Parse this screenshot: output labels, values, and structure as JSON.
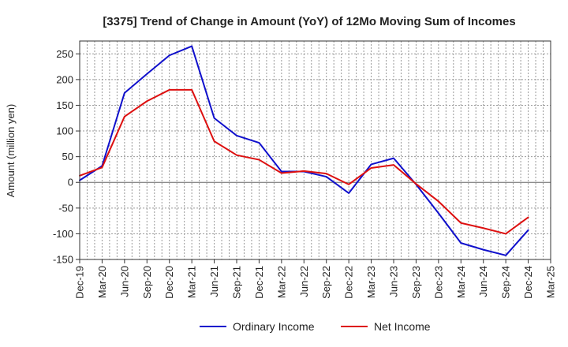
{
  "chart_data": {
    "type": "line",
    "title": "[3375]  Trend of Change in Amount (YoY) of 12Mo Moving Sum of Incomes",
    "ylabel": "Amount (million yen)",
    "xlabel": "",
    "ylim": [
      -150,
      275
    ],
    "yticks": [
      250,
      200,
      150,
      100,
      50,
      0,
      -50,
      -100,
      -150
    ],
    "categories": [
      "Dec-19",
      "Mar-20",
      "Jun-20",
      "Sep-20",
      "Dec-20",
      "Mar-21",
      "Jun-21",
      "Sep-21",
      "Dec-21",
      "Mar-22",
      "Jun-22",
      "Sep-22",
      "Dec-22",
      "Mar-23",
      "Jun-23",
      "Sep-23",
      "Dec-23",
      "Mar-24",
      "Jun-24",
      "Sep-24",
      "Dec-24",
      "Mar-25"
    ],
    "series": [
      {
        "name": "Ordinary Income",
        "color": "#1010cc",
        "values": [
          4,
          32,
          174,
          211,
          247,
          265,
          125,
          91,
          77,
          21,
          21,
          11,
          -21,
          35,
          47,
          -4,
          -60,
          -118,
          -131,
          -142,
          -93,
          null
        ]
      },
      {
        "name": "Net Income",
        "color": "#dd1010",
        "values": [
          13,
          29,
          128,
          158,
          180,
          180,
          80,
          53,
          44,
          18,
          22,
          17,
          -4,
          28,
          34,
          -3,
          -37,
          -79,
          -89,
          -100,
          -68,
          null
        ]
      }
    ],
    "grid": true,
    "legend": "bottom-center"
  }
}
